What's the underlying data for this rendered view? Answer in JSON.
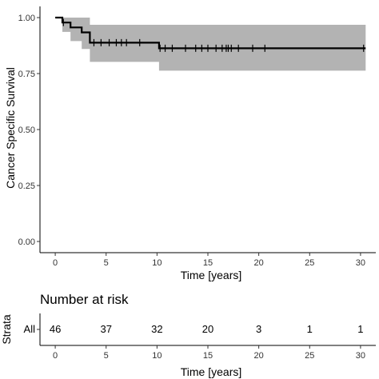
{
  "chart_data": [
    {
      "type": "line",
      "subtype": "kaplan-meier",
      "ylabel": "Cancer Specific Survival",
      "xlabel": "Time [years]",
      "xlim": [
        -1.5,
        31.5
      ],
      "ylim": [
        -0.05,
        1.05
      ],
      "x_ticks": [
        0,
        5,
        10,
        15,
        20,
        25,
        30
      ],
      "x_tick_labels": [
        "0",
        "5",
        "10",
        "15",
        "20",
        "25",
        "30"
      ],
      "y_ticks": [
        0,
        0.25,
        0.5,
        0.75,
        1.0
      ],
      "y_tick_labels": [
        "0.00",
        "0.25",
        "0.50",
        "0.75",
        "1.00"
      ],
      "grid": false,
      "legend": "none",
      "colors": {
        "curve": "#000000",
        "confidence_band": "#b3b3b3"
      },
      "series": [
        {
          "steps": [
            [
              0,
              1.0
            ],
            [
              0.7,
              0.978
            ],
            [
              1.5,
              0.956
            ],
            [
              2.6,
              0.934
            ],
            [
              3.4,
              0.888
            ],
            [
              10.2,
              0.863
            ],
            [
              30.5,
              0.863
            ]
          ],
          "ci_steps": [
            [
              0,
              1.0,
              1.0
            ],
            [
              0.7,
              0.936,
              1.0
            ],
            [
              1.5,
              0.895,
              1.0
            ],
            [
              2.6,
              0.86,
              1.0
            ],
            [
              3.4,
              0.802,
              0.968
            ],
            [
              10.2,
              0.763,
              0.968
            ],
            [
              30.5,
              0.763,
              0.968
            ]
          ],
          "censor_times": [
            0.8,
            3.8,
            4.5,
            5.3,
            6.0,
            6.5,
            7.0,
            8.3,
            10.3,
            10.8,
            11.5,
            12.8,
            13.8,
            14.4,
            15.0,
            15.8,
            16.4,
            16.8,
            17.0,
            17.3,
            18.0,
            19.4,
            20.6,
            30.3
          ]
        }
      ]
    },
    {
      "type": "table",
      "title": "Number at risk",
      "ylabel": "Strata",
      "xlabel": "Time [years]",
      "row_label": "All",
      "x_ticks": [
        0,
        5,
        10,
        15,
        20,
        25,
        30
      ],
      "x_tick_labels": [
        "0",
        "5",
        "10",
        "15",
        "20",
        "25",
        "30"
      ],
      "values": [
        46,
        37,
        32,
        20,
        3,
        1,
        1
      ]
    }
  ]
}
